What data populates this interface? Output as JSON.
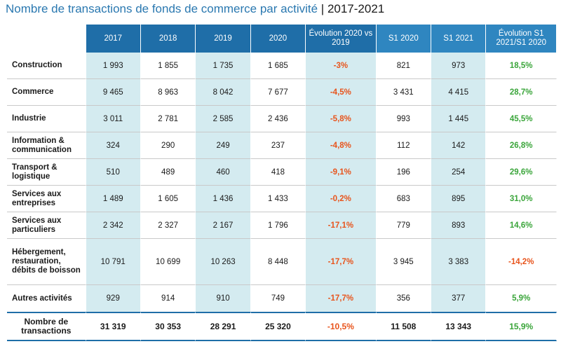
{
  "title": {
    "main": "Nombre de transactions de fonds de commerce par activité",
    "separator": "|",
    "years": "2017-2021"
  },
  "table": {
    "headers": [
      "2017",
      "2018",
      "2019",
      "2020",
      "Évolution 2020 vs 2019",
      "S1 2020",
      "S1 2021",
      "Évolution S1 2021/S1 2020"
    ],
    "rows": [
      {
        "label": "Construction",
        "values": [
          "1 993",
          "1 855",
          "1 735",
          "1 685",
          "-3%",
          "821",
          "973",
          "18,5%"
        ]
      },
      {
        "label": "Commerce",
        "values": [
          "9 465",
          "8 963",
          "8 042",
          "7 677",
          "-4,5%",
          "3 431",
          "4 415",
          "28,7%"
        ]
      },
      {
        "label": "Industrie",
        "values": [
          "3 011",
          "2 781",
          "2 585",
          "2 436",
          "-5,8%",
          "993",
          "1 445",
          "45,5%"
        ]
      },
      {
        "label": "Information & communication",
        "values": [
          "324",
          "290",
          "249",
          "237",
          "-4,8%",
          "112",
          "142",
          "26,8%"
        ]
      },
      {
        "label": "Transport & logistique",
        "values": [
          "510",
          "489",
          "460",
          "418",
          "-9,1%",
          "196",
          "254",
          "29,6%"
        ]
      },
      {
        "label": "Services aux entreprises",
        "values": [
          "1 489",
          "1 605",
          "1 436",
          "1 433",
          "-0,2%",
          "683",
          "895",
          "31,0%"
        ]
      },
      {
        "label": "Services aux particuliers",
        "values": [
          "2 342",
          "2 327",
          "2 167",
          "1 796",
          "-17,1%",
          "779",
          "893",
          "14,6%"
        ]
      },
      {
        "label": "Hébergement, restauration, débits de boisson",
        "values": [
          "10 791",
          "10 699",
          "10 263",
          "8 448",
          "-17,7%",
          "3 945",
          "3 383",
          "-14,2%"
        ]
      },
      {
        "label": "Autres activités",
        "values": [
          "929",
          "914",
          "910",
          "749",
          "-17,7%",
          "356",
          "377",
          "5,9%"
        ]
      }
    ],
    "total": {
      "label": "Nombre de transactions",
      "values": [
        "31 319",
        "30 353",
        "28 291",
        "25 320",
        "-10,5%",
        "11 508",
        "13 343",
        "15,9%"
      ]
    }
  },
  "colors": {
    "header_blue": "#1f6ea8",
    "header_s1_blue": "#2f86c0",
    "shade": "#d4ebf0",
    "negative": "#e8541c",
    "positive": "#3aa53a",
    "title": "#2a78b0"
  }
}
